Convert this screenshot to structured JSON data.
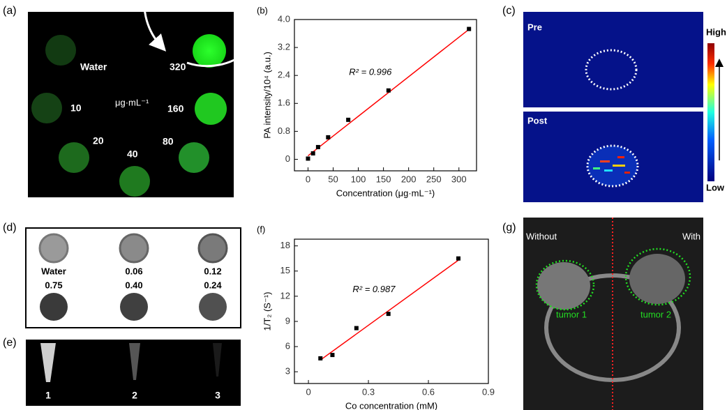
{
  "panels": {
    "a": {
      "label": "(a)",
      "water": "Water",
      "unit": "μg·mL⁻¹",
      "concentrations": [
        "320",
        "160",
        "80",
        "40",
        "20",
        "10"
      ]
    },
    "c": {
      "label": "(c)",
      "pre": "Pre",
      "post": "Post",
      "high": "High",
      "low": "Low"
    },
    "d": {
      "label": "(d)",
      "top": [
        "Water",
        "0.06",
        "0.12"
      ],
      "bottom": [
        "0.75",
        "0.40",
        "0.24"
      ]
    },
    "e": {
      "label": "(e)",
      "tubes": [
        "1",
        "2",
        "3"
      ]
    },
    "g": {
      "label": "(g)",
      "without": "Without",
      "with": "With",
      "tumors": [
        "tumor 1",
        "tumor 2"
      ]
    }
  },
  "chart_data": [
    {
      "type": "scatter",
      "panel_label": "(b)",
      "x_label": "Concentration (μg·mL⁻¹)",
      "y_label": "PA intensity/10⁴ (a.u.)",
      "annotation": "R² = 0.996",
      "x": [
        0,
        10,
        20,
        40,
        80,
        160,
        320
      ],
      "values": [
        0.02,
        0.17,
        0.35,
        0.63,
        1.13,
        1.97,
        3.73
      ],
      "color": "#000000",
      "fit": {
        "x": [
          0,
          320
        ],
        "values": [
          0.1,
          3.72
        ],
        "color": "#ff0000"
      },
      "xlim": [
        -27,
        335
      ],
      "xticks": [
        0,
        50,
        100,
        150,
        200,
        250,
        300
      ],
      "ylim": [
        -0.33,
        4.0
      ],
      "yticks": [
        0,
        0.8,
        1.6,
        2.4,
        3.2,
        {
          "value": 4,
          "label": "4.0"
        }
      ]
    },
    {
      "type": "scatter",
      "panel_label": "(f)",
      "x_label": "Co concentration (mM)",
      "y_label": "1/T₂ (S⁻¹)",
      "annotation": "R² = 0.987",
      "x": [
        0.06,
        0.12,
        0.24,
        0.4,
        0.75
      ],
      "values": [
        4.6,
        5.0,
        8.2,
        9.9,
        16.5
      ],
      "color": "#000000",
      "fit": {
        "x": [
          0.06,
          0.75
        ],
        "values": [
          4.4,
          16.3
        ],
        "color": "#ff0000"
      },
      "xlim": [
        -0.07,
        0.9
      ],
      "xticks": [
        0,
        0.3,
        0.6,
        0.9
      ],
      "ylim": [
        1.6,
        18.8
      ],
      "yticks": [
        3,
        6,
        9,
        12,
        15,
        18
      ]
    }
  ]
}
